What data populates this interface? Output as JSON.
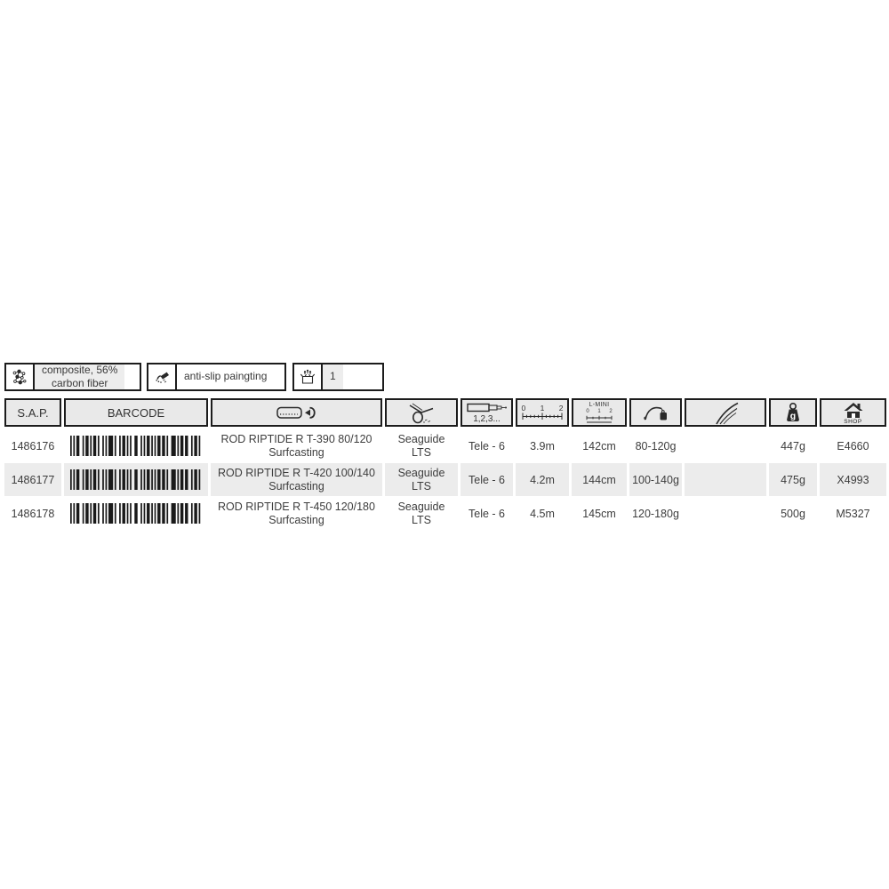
{
  "colors": {
    "border": "#1c1c1c",
    "header_bg": "#e9e9e9",
    "row_alt_bg": "#ececec",
    "text": "#3d3d3d",
    "barcode": "#1a1a1a"
  },
  "badges": [
    {
      "icon": "composite-molecule-icon",
      "label": "composite, 56%\ncarbon fiber"
    },
    {
      "icon": "anti-slip-spray-icon",
      "label": "anti-slip paingting"
    },
    {
      "icon": "packaging-box-icon",
      "label": "1"
    }
  ],
  "table": {
    "header": {
      "sap_label": "S.A.P.",
      "barcode_label": "BARCODE",
      "name_icon": "rod-handle-icon",
      "guides_icon": "rod-guide-icon",
      "sections_icon": "telescopic-sections-icon",
      "sections_label": "1,2,3...",
      "ruler_scale": "0 1 2",
      "lmini_label": "L-MINI",
      "lmini_scale": "0 1 2",
      "casting_icon": "casting-weight-icon",
      "action_icon": "rod-tip-action-icon",
      "weight_unit": "g",
      "shop_label": "SHOP"
    },
    "rows": [
      {
        "sap": "1486176",
        "name": "ROD RIPTIDE R T-390 80/120\nSurfcasting",
        "guides": "Seaguide\nLTS",
        "sections": "Tele - 6",
        "length": "3.9m",
        "closed_length": "142cm",
        "casting_weight": "80-120g",
        "action": "",
        "weight": "447g",
        "shop_code": "E4660"
      },
      {
        "sap": "1486177",
        "name": "ROD RIPTIDE R T-420 100/140\nSurfcasting",
        "guides": "Seaguide\nLTS",
        "sections": "Tele - 6",
        "length": "4.2m",
        "closed_length": "144cm",
        "casting_weight": "100-140g",
        "action": "",
        "weight": "475g",
        "shop_code": "X4993"
      },
      {
        "sap": "1486178",
        "name": "ROD RIPTIDE R T-450 120/180\nSurfcasting",
        "guides": "Seaguide\nLTS",
        "sections": "Tele - 6",
        "length": "4.5m",
        "closed_length": "145cm",
        "casting_weight": "120-180g",
        "action": "",
        "weight": "500g",
        "shop_code": "M5327"
      }
    ]
  }
}
